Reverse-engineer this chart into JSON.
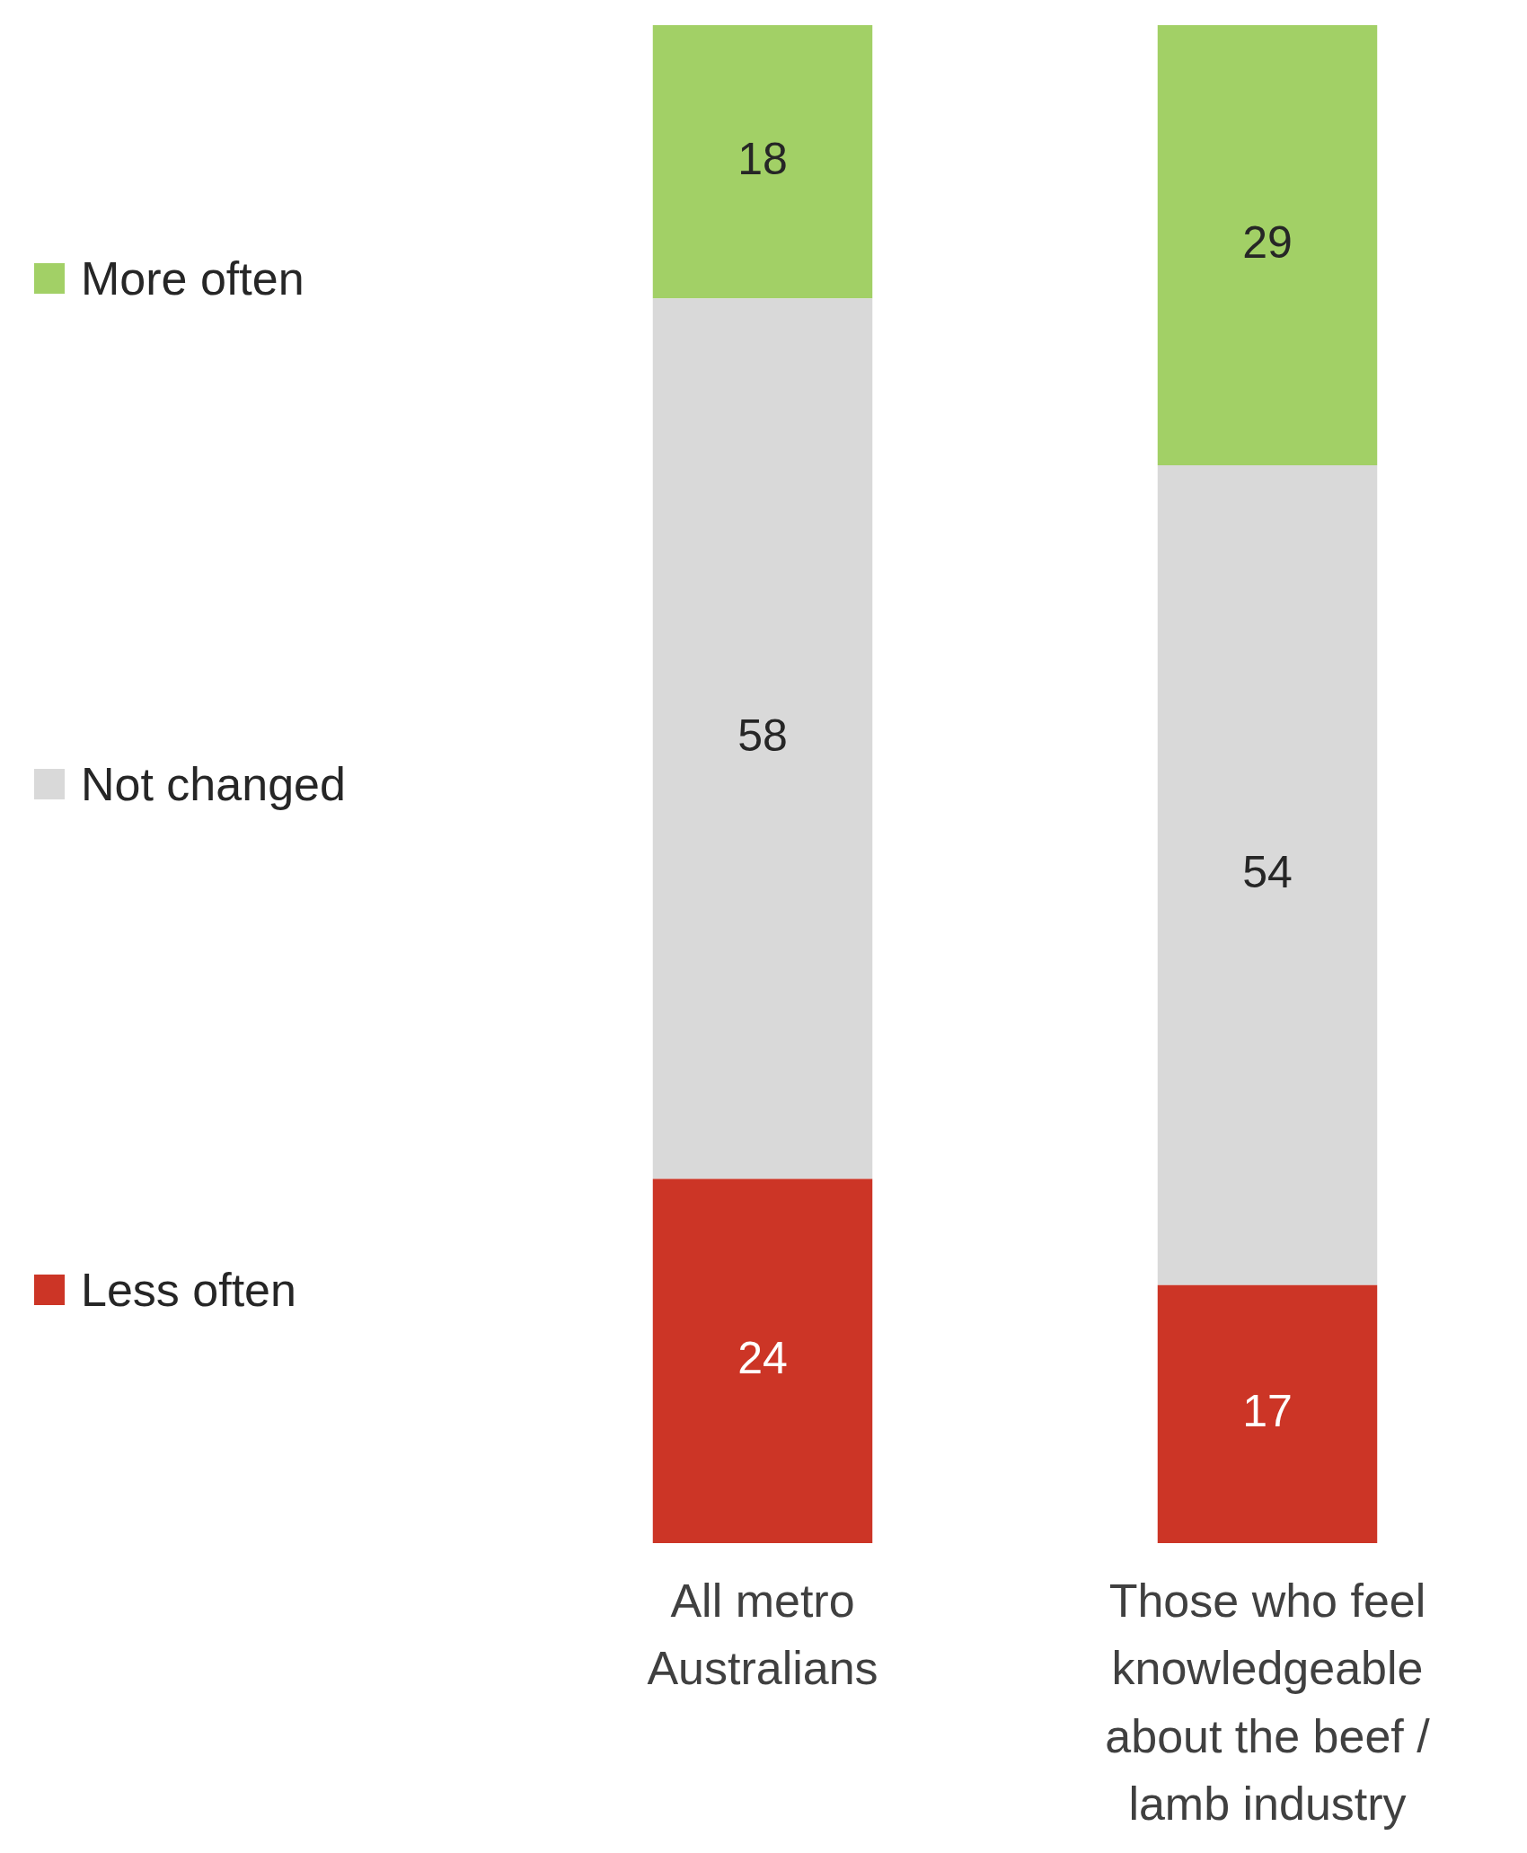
{
  "chart_data": {
    "type": "bar",
    "stacked": true,
    "categories": [
      "All metro Australians",
      "Those who feel knowledgeable about the beef / lamb industry"
    ],
    "series": [
      {
        "name": "Less often",
        "color": "#cc3526",
        "values": [
          24,
          17
        ]
      },
      {
        "name": "Not changed",
        "color": "#d9d9d9",
        "values": [
          58,
          54
        ]
      },
      {
        "name": "More often",
        "color": "#a2d066",
        "values": [
          18,
          29
        ]
      }
    ],
    "data_labels": true,
    "legend": "left",
    "grid": false
  }
}
